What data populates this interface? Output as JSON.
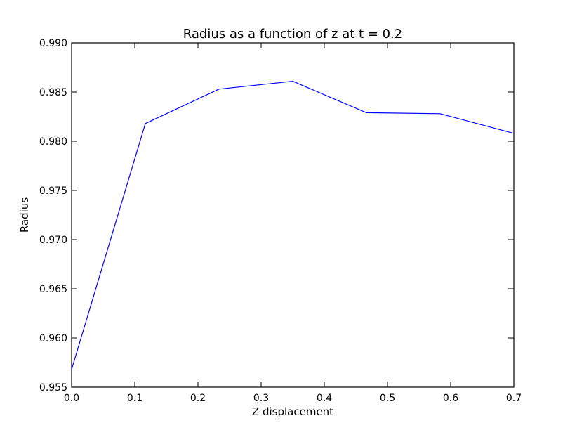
{
  "chart_data": {
    "type": "line",
    "title": "Radius as a function of z at t = 0.2",
    "xlabel": "Z displacement",
    "ylabel": "Radius",
    "xlim": [
      0.0,
      0.7
    ],
    "ylim": [
      0.955,
      0.99
    ],
    "xticks": [
      0.0,
      0.1,
      0.2,
      0.3,
      0.4,
      0.5,
      0.6,
      0.7
    ],
    "xtick_labels": [
      "0.0",
      "0.1",
      "0.2",
      "0.3",
      "0.4",
      "0.5",
      "0.6",
      "0.7"
    ],
    "yticks": [
      0.955,
      0.96,
      0.965,
      0.97,
      0.975,
      0.98,
      0.985,
      0.99
    ],
    "ytick_labels": [
      "0.955",
      "0.960",
      "0.965",
      "0.970",
      "0.975",
      "0.980",
      "0.985",
      "0.990"
    ],
    "grid": false,
    "series": [
      {
        "color": "#0000ff",
        "x": [
          0.0,
          0.1167,
          0.2333,
          0.35,
          0.4667,
          0.5833,
          0.7
        ],
        "y": [
          0.9568,
          0.9818,
          0.9853,
          0.9861,
          0.9829,
          0.9828,
          0.9808
        ]
      }
    ]
  }
}
